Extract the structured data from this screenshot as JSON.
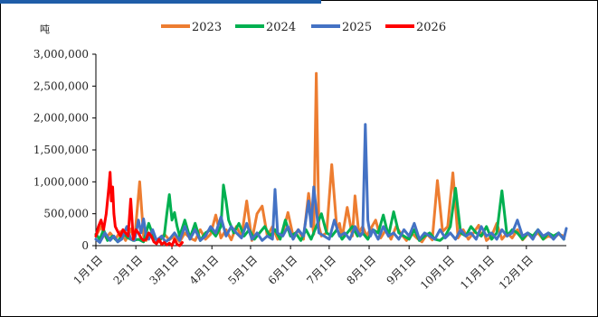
{
  "chart_data": {
    "type": "line",
    "ylabel": "吨",
    "ylim": [
      0,
      3000000
    ],
    "y_ticks": [
      0,
      500000,
      1000000,
      1500000,
      2000000,
      2500000,
      3000000
    ],
    "y_tick_labels": [
      "0",
      "500,000",
      "1,000,000",
      "1,500,000",
      "2,000,000",
      "2,500,000",
      "3,000,000"
    ],
    "x_range_days": [
      1,
      366
    ],
    "x_tick_days": [
      1,
      32,
      60,
      91,
      121,
      152,
      182,
      213,
      244,
      274,
      305,
      335
    ],
    "x_tick_labels": [
      "1月1日",
      "2月1日",
      "3月1日",
      "4月1日",
      "5月1日",
      "6月1日",
      "7月1日",
      "8月1日",
      "9月1日",
      "10月1日",
      "11月1日",
      "12月1日"
    ],
    "legend_position": "top",
    "grid": false,
    "series": [
      {
        "name": "2023",
        "color": "#ed7d31",
        "x": [
          1,
          5,
          9,
          12,
          16,
          20,
          24,
          28,
          31,
          35,
          38,
          40,
          42,
          46,
          50,
          54,
          58,
          62,
          66,
          70,
          74,
          78,
          82,
          86,
          90,
          94,
          98,
          102,
          106,
          110,
          114,
          118,
          122,
          126,
          130,
          134,
          138,
          142,
          146,
          150,
          154,
          158,
          162,
          166,
          170,
          172,
          174,
          176,
          180,
          184,
          188,
          190,
          192,
          196,
          200,
          202,
          205,
          208,
          211,
          214,
          218,
          222,
          226,
          230,
          234,
          238,
          242,
          246,
          250,
          254,
          258,
          262,
          266,
          270,
          274,
          278,
          282,
          286,
          290,
          294,
          298,
          300,
          302,
          304,
          308,
          312,
          316,
          320,
          324,
          328,
          332,
          336,
          340,
          344,
          348,
          352,
          356,
          360,
          364
        ],
        "y": [
          150000,
          300000,
          120000,
          200000,
          100000,
          220000,
          80000,
          260000,
          90000,
          1000000,
          150000,
          80000,
          200000,
          120000,
          60000,
          180000,
          90000,
          150000,
          60000,
          200000,
          120000,
          80000,
          250000,
          100000,
          180000,
          480000,
          120000,
          250000,
          90000,
          300000,
          140000,
          700000,
          80000,
          500000,
          620000,
          150000,
          300000,
          100000,
          200000,
          520000,
          150000,
          250000,
          100000,
          820000,
          180000,
          2700000,
          300000,
          150000,
          200000,
          1270000,
          250000,
          350000,
          120000,
          600000,
          150000,
          780000,
          200000,
          300000,
          150000,
          260000,
          400000,
          120000,
          250000,
          100000,
          300000,
          180000,
          80000,
          200000,
          120000,
          60000,
          180000,
          90000,
          1020000,
          220000,
          300000,
          1140000,
          120000,
          250000,
          100000,
          200000,
          320000,
          150000,
          220000,
          80000,
          150000,
          350000,
          100000,
          200000,
          120000,
          250000,
          90000,
          180000,
          140000,
          200000,
          100000,
          150000,
          120000,
          180000,
          150000
        ]
      },
      {
        "name": "2024",
        "color": "#00b050",
        "x": [
          1,
          4,
          7,
          10,
          14,
          18,
          22,
          26,
          30,
          34,
          38,
          42,
          46,
          50,
          54,
          56,
          58,
          60,
          62,
          64,
          66,
          70,
          74,
          78,
          82,
          86,
          90,
          94,
          98,
          100,
          102,
          104,
          108,
          112,
          116,
          120,
          124,
          128,
          132,
          136,
          140,
          144,
          148,
          152,
          156,
          160,
          164,
          168,
          172,
          176,
          180,
          184,
          188,
          192,
          196,
          200,
          204,
          208,
          212,
          216,
          220,
          224,
          228,
          232,
          236,
          240,
          244,
          248,
          252,
          256,
          260,
          264,
          268,
          272,
          276,
          280,
          284,
          288,
          292,
          296,
          300,
          304,
          308,
          312,
          316,
          320,
          324,
          328,
          332,
          336,
          340,
          344,
          348,
          352,
          356,
          360,
          364
        ],
        "y": [
          180000,
          100000,
          250000,
          80000,
          150000,
          60000,
          200000,
          120000,
          80000,
          100000,
          60000,
          350000,
          120000,
          80000,
          150000,
          500000,
          800000,
          400000,
          520000,
          300000,
          150000,
          400000,
          120000,
          350000,
          80000,
          200000,
          250000,
          150000,
          300000,
          950000,
          700000,
          400000,
          200000,
          350000,
          150000,
          250000,
          100000,
          200000,
          300000,
          150000,
          250000,
          100000,
          400000,
          150000,
          200000,
          80000,
          250000,
          100000,
          300000,
          500000,
          200000,
          150000,
          250000,
          100000,
          200000,
          300000,
          150000,
          200000,
          100000,
          250000,
          200000,
          480000,
          150000,
          530000,
          200000,
          150000,
          100000,
          250000,
          80000,
          150000,
          200000,
          100000,
          80000,
          150000,
          300000,
          900000,
          200000,
          150000,
          300000,
          200000,
          150000,
          300000,
          100000,
          200000,
          860000,
          150000,
          250000,
          200000,
          100000,
          200000,
          150000,
          250000,
          100000,
          200000,
          150000,
          200000,
          100000
        ]
      },
      {
        "name": "2025",
        "color": "#4472c4",
        "x": [
          1,
          4,
          8,
          12,
          15,
          18,
          21,
          25,
          28,
          31,
          34,
          36,
          38,
          40,
          42,
          45,
          48,
          52,
          55,
          58,
          62,
          66,
          70,
          74,
          78,
          82,
          86,
          90,
          94,
          98,
          102,
          106,
          110,
          114,
          118,
          122,
          126,
          130,
          134,
          138,
          140,
          142,
          146,
          150,
          154,
          158,
          162,
          166,
          168,
          170,
          174,
          178,
          182,
          186,
          190,
          194,
          198,
          202,
          206,
          208,
          210,
          212,
          214,
          216,
          220,
          224,
          228,
          232,
          236,
          240,
          244,
          248,
          252,
          256,
          260,
          264,
          268,
          272,
          276,
          280,
          284,
          288,
          292,
          296,
          300,
          304,
          308,
          312,
          316,
          320,
          324,
          328,
          332,
          336,
          340,
          344,
          348,
          352,
          356,
          360,
          362,
          364,
          366
        ],
        "y": [
          100000,
          50000,
          200000,
          80000,
          150000,
          60000,
          100000,
          300000,
          100000,
          80000,
          400000,
          200000,
          420000,
          150000,
          100000,
          250000,
          80000,
          150000,
          60000,
          100000,
          200000,
          80000,
          300000,
          100000,
          250000,
          80000,
          150000,
          300000,
          200000,
          450000,
          150000,
          300000,
          200000,
          120000,
          350000,
          100000,
          200000,
          80000,
          150000,
          100000,
          880000,
          200000,
          150000,
          300000,
          100000,
          250000,
          150000,
          700000,
          300000,
          920000,
          200000,
          150000,
          100000,
          400000,
          150000,
          200000,
          100000,
          300000,
          150000,
          200000,
          1900000,
          400000,
          150000,
          250000,
          100000,
          300000,
          150000,
          200000,
          100000,
          250000,
          150000,
          350000,
          100000,
          200000,
          150000,
          100000,
          250000,
          120000,
          200000,
          100000,
          250000,
          150000,
          200000,
          100000,
          300000,
          150000,
          200000,
          100000,
          250000,
          150000,
          200000,
          400000,
          150000,
          200000,
          100000,
          250000,
          150000,
          200000,
          100000,
          200000,
          150000,
          100000,
          270000
        ]
      },
      {
        "name": "2026",
        "color": "#ff0000",
        "x": [
          1,
          3,
          5,
          7,
          9,
          11,
          12,
          13,
          14,
          15,
          16,
          18,
          20,
          22,
          24,
          26,
          28,
          30,
          32,
          34,
          36,
          38,
          40,
          42,
          44,
          46,
          48,
          50,
          52,
          54,
          56,
          58,
          60,
          62,
          64,
          66,
          68
        ],
        "y": [
          150000,
          300000,
          400000,
          250000,
          500000,
          900000,
          1150000,
          700000,
          920000,
          500000,
          300000,
          220000,
          150000,
          250000,
          200000,
          150000,
          730000,
          100000,
          250000,
          200000,
          120000,
          80000,
          100000,
          200000,
          150000,
          60000,
          30000,
          100000,
          20000,
          50000,
          10000,
          40000,
          0,
          100000,
          20000,
          0,
          50000
        ]
      }
    ]
  }
}
